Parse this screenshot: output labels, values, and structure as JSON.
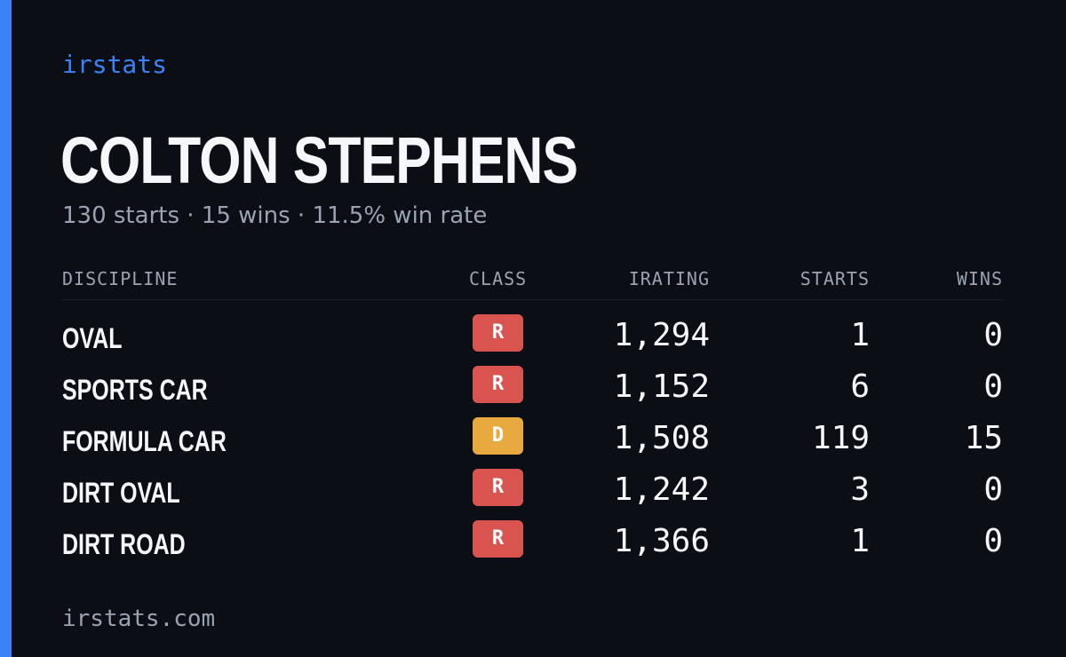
{
  "brand": "irstats",
  "driver": {
    "name": "COLTON STEPHENS",
    "summary": "130 starts · 15 wins · 11.5% win rate"
  },
  "table": {
    "headers": {
      "discipline": "DISCIPLINE",
      "class": "CLASS",
      "irating": "IRATING",
      "starts": "STARTS",
      "wins": "WINS"
    },
    "rows": [
      {
        "discipline": "OVAL",
        "class": "R",
        "class_color": "#d9534f",
        "irating": "1,294",
        "starts": "1",
        "wins": "0"
      },
      {
        "discipline": "SPORTS CAR",
        "class": "R",
        "class_color": "#d9534f",
        "irating": "1,152",
        "starts": "6",
        "wins": "0"
      },
      {
        "discipline": "FORMULA CAR",
        "class": "D",
        "class_color": "#e8a93f",
        "irating": "1,508",
        "starts": "119",
        "wins": "15"
      },
      {
        "discipline": "DIRT OVAL",
        "class": "R",
        "class_color": "#d9534f",
        "irating": "1,242",
        "starts": "3",
        "wins": "0"
      },
      {
        "discipline": "DIRT ROAD",
        "class": "R",
        "class_color": "#d9534f",
        "irating": "1,366",
        "starts": "1",
        "wins": "0"
      }
    ]
  },
  "footer": "irstats.com",
  "colors": {
    "accent": "#3b82f6",
    "background": "#0b0e14",
    "text": "#f5f7fa",
    "muted": "#9aa3b2"
  }
}
